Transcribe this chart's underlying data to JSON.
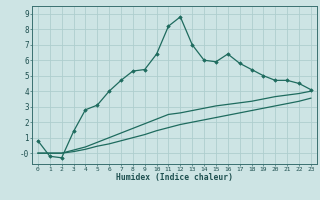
{
  "xlabel": "Humidex (Indice chaleur)",
  "ylabel": "",
  "bg_color": "#cde4e4",
  "grid_color": "#aecece",
  "line_color": "#1e6b5e",
  "xlim": [
    -0.5,
    23.5
  ],
  "ylim": [
    -0.7,
    9.5
  ],
  "xticks": [
    0,
    1,
    2,
    3,
    4,
    5,
    6,
    7,
    8,
    9,
    10,
    11,
    12,
    13,
    14,
    15,
    16,
    17,
    18,
    19,
    20,
    21,
    22,
    23
  ],
  "yticks": [
    0,
    1,
    2,
    3,
    4,
    5,
    6,
    7,
    8,
    9
  ],
  "ytick_labels": [
    "-0",
    "1",
    "2",
    "3",
    "4",
    "5",
    "6",
    "7",
    "8",
    "9"
  ],
  "series1_x": [
    0,
    1,
    2,
    3,
    4,
    5,
    6,
    7,
    8,
    9,
    10,
    11,
    12,
    13,
    14,
    15,
    16,
    17,
    18,
    19,
    20,
    21,
    22,
    23
  ],
  "series1_y": [
    0.8,
    -0.2,
    -0.3,
    1.4,
    2.8,
    3.1,
    4.0,
    4.7,
    5.3,
    5.4,
    6.4,
    8.2,
    8.8,
    7.0,
    6.0,
    5.9,
    6.4,
    5.8,
    5.4,
    5.0,
    4.7,
    4.7,
    4.5,
    4.1
  ],
  "series2_x": [
    0,
    1,
    2,
    3,
    4,
    5,
    6,
    7,
    8,
    9,
    10,
    11,
    12,
    13,
    14,
    15,
    16,
    17,
    18,
    19,
    20,
    21,
    22,
    23
  ],
  "series2_y": [
    0.0,
    0.0,
    0.0,
    0.2,
    0.4,
    0.7,
    1.0,
    1.3,
    1.6,
    1.9,
    2.2,
    2.5,
    2.6,
    2.75,
    2.9,
    3.05,
    3.15,
    3.25,
    3.35,
    3.5,
    3.65,
    3.75,
    3.85,
    4.0
  ],
  "series3_x": [
    0,
    1,
    2,
    3,
    4,
    5,
    6,
    7,
    8,
    9,
    10,
    11,
    12,
    13,
    14,
    15,
    16,
    17,
    18,
    19,
    20,
    21,
    22,
    23
  ],
  "series3_y": [
    0.0,
    0.0,
    0.0,
    0.1,
    0.25,
    0.45,
    0.6,
    0.8,
    1.0,
    1.2,
    1.45,
    1.65,
    1.85,
    2.0,
    2.15,
    2.3,
    2.45,
    2.6,
    2.75,
    2.9,
    3.05,
    3.2,
    3.35,
    3.55
  ]
}
